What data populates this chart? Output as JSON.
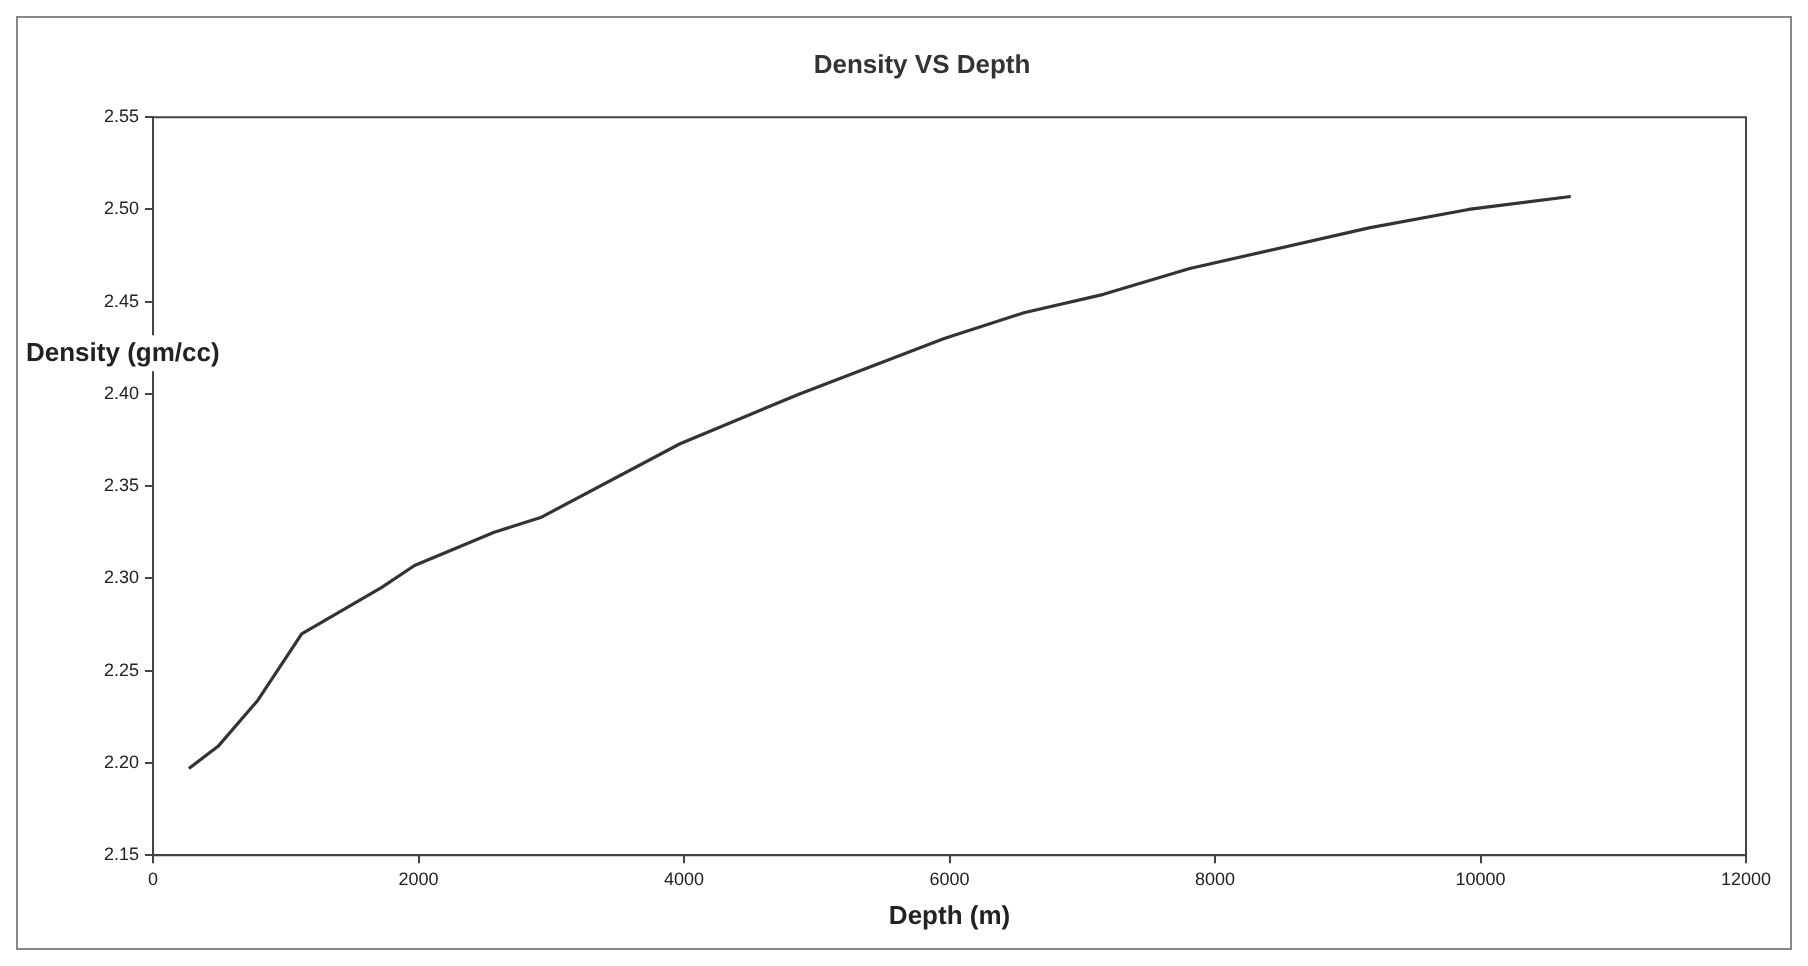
{
  "chart_data": {
    "type": "line",
    "title": "Density VS Depth",
    "xlabel": "Depth (m)",
    "ylabel": "Density (gm/cc)",
    "x": [
      270,
      490,
      790,
      1120,
      1720,
      1970,
      2570,
      2920,
      3970,
      4870,
      5960,
      6560,
      7160,
      7810,
      9160,
      9910,
      10680
    ],
    "series": [
      {
        "color": "#333333",
        "values": [
          2.197,
          2.209,
          2.234,
          2.27,
          2.295,
          2.307,
          2.325,
          2.333,
          2.373,
          2.4,
          2.43,
          2.444,
          2.454,
          2.468,
          2.49,
          2.5,
          2.507
        ]
      }
    ],
    "xlim": [
      0,
      12000
    ],
    "xticks": [
      0,
      2000,
      4000,
      6000,
      8000,
      10000,
      12000
    ],
    "ylim": [
      2.15,
      2.55
    ],
    "yticks": [
      {
        "value": 2.15,
        "label": "2.15"
      },
      {
        "value": 2.2,
        "label": "2.20"
      },
      {
        "value": 2.25,
        "label": "2.25"
      },
      {
        "value": 2.3,
        "label": "2.30"
      },
      {
        "value": 2.35,
        "label": "2.35"
      },
      {
        "value": 2.4,
        "label": "2.40"
      },
      {
        "value": 2.45,
        "label": "2.45"
      },
      {
        "value": 2.5,
        "label": "2.50"
      },
      {
        "value": 2.55,
        "label": "2.55"
      }
    ],
    "grid": false,
    "legend": false,
    "marker": "none",
    "line_style": "solid"
  }
}
